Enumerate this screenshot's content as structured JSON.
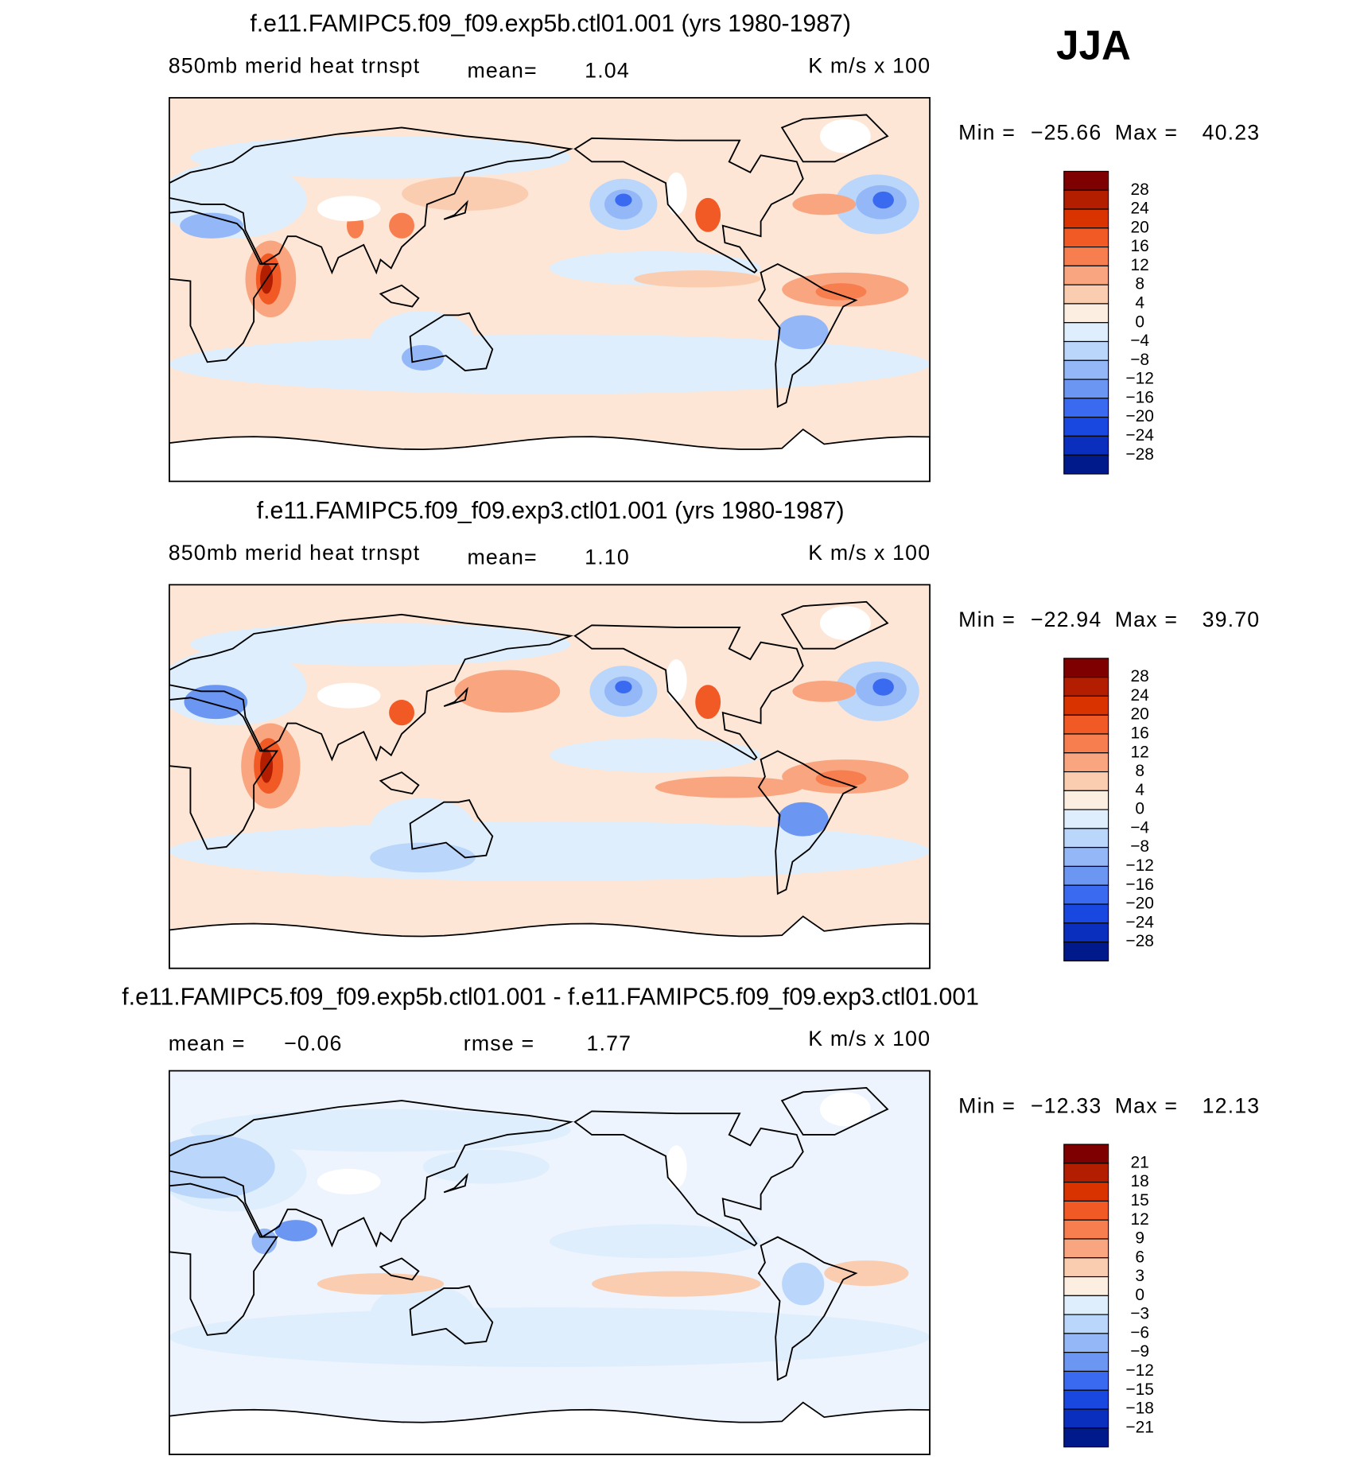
{
  "header": {
    "season": "JJA"
  },
  "panels": [
    {
      "title": "f.e11.FAMIPC5.f09_f09.exp5b.ctl01.001 (yrs 1980-1987)",
      "variable": "850mb merid heat trnspt",
      "mean_label": "mean=",
      "mean": "1.04",
      "units": "K m/s x 100",
      "min_label": "Min =",
      "min": "−25.66",
      "max_label": "Max =",
      "max": "40.23",
      "colorbar": {
        "labels": [
          "28",
          "24",
          "20",
          "16",
          "12",
          "8",
          "4",
          "0",
          "−4",
          "−8",
          "−12",
          "−16",
          "−20",
          "−24",
          "−28"
        ],
        "colors": [
          "#7f0000",
          "#b31d00",
          "#d93300",
          "#f25a25",
          "#f77e4e",
          "#f9a57f",
          "#fbcdb0",
          "#fdeee2",
          "#deeefc",
          "#bad6fa",
          "#94b8f7",
          "#6b96f2",
          "#3a6af0",
          "#1848e0",
          "#0a2fbe",
          "#001a8c"
        ]
      }
    },
    {
      "title": "f.e11.FAMIPC5.f09_f09.exp3.ctl01.001 (yrs 1980-1987)",
      "variable": "850mb merid heat trnspt",
      "mean_label": "mean=",
      "mean": "1.10",
      "units": "K m/s x 100",
      "min_label": "Min =",
      "min": "−22.94",
      "max_label": "Max =",
      "max": "39.70",
      "colorbar": {
        "labels": [
          "28",
          "24",
          "20",
          "16",
          "12",
          "8",
          "4",
          "0",
          "−4",
          "−8",
          "−12",
          "−16",
          "−20",
          "−24",
          "−28"
        ],
        "colors": [
          "#7f0000",
          "#b31d00",
          "#d93300",
          "#f25a25",
          "#f77e4e",
          "#f9a57f",
          "#fbcdb0",
          "#fdeee2",
          "#deeefc",
          "#bad6fa",
          "#94b8f7",
          "#6b96f2",
          "#3a6af0",
          "#1848e0",
          "#0a2fbe",
          "#001a8c"
        ]
      }
    },
    {
      "title": "f.e11.FAMIPC5.f09_f09.exp5b.ctl01.001 - f.e11.FAMIPC5.f09_f09.exp3.ctl01.001",
      "mean_label": "mean =",
      "mean": "−0.06",
      "rmse_label": "rmse =",
      "rmse": "1.77",
      "units": "K m/s x 100",
      "min_label": "Min =",
      "min": "−12.33",
      "max_label": "Max =",
      "max": "12.13",
      "colorbar": {
        "labels": [
          "21",
          "18",
          "15",
          "12",
          "9",
          "6",
          "3",
          "0",
          "−3",
          "−6",
          "−9",
          "−12",
          "−15",
          "−18",
          "−21"
        ],
        "colors": [
          "#7f0000",
          "#b31d00",
          "#d93300",
          "#f25a25",
          "#f77e4e",
          "#f9a57f",
          "#fbcdb0",
          "#fdeee2",
          "#deeefc",
          "#bad6fa",
          "#94b8f7",
          "#6b96f2",
          "#3a6af0",
          "#1848e0",
          "#0a2fbe",
          "#001a8c"
        ]
      }
    }
  ]
}
